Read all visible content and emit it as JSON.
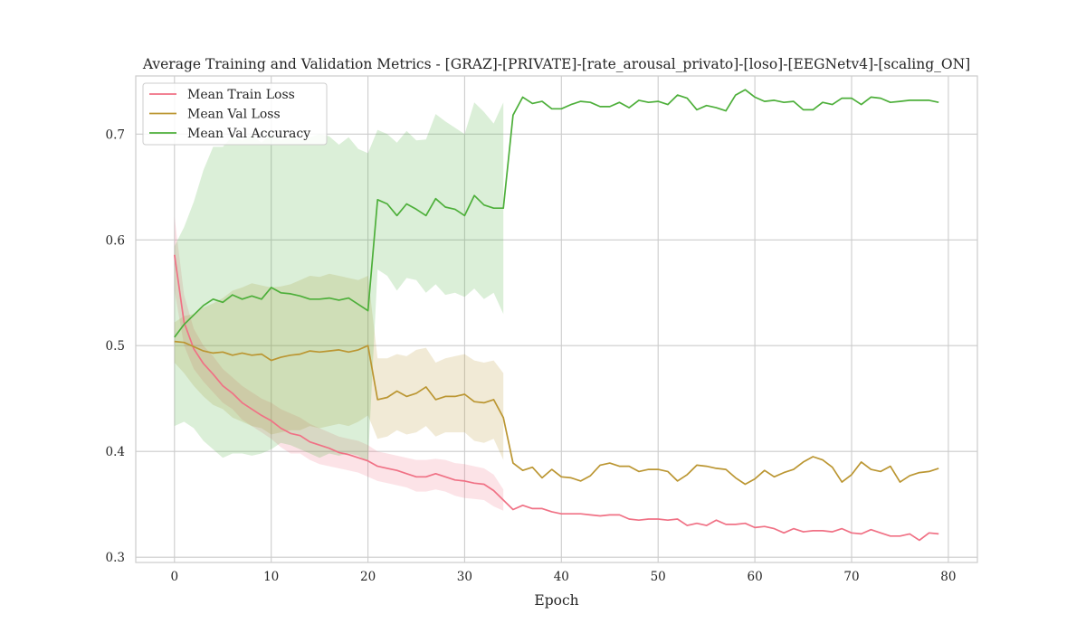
{
  "chart_data": {
    "type": "line",
    "title": "Average Training and Validation Metrics - [GRAZ]-[PRIVATE]-[rate_arousal_privato]-[loso]-[EEGNetv4]-[scaling_ON]",
    "xlabel": "Epoch",
    "ylabel": "",
    "xlim": [
      -4,
      83
    ],
    "ylim": [
      0.295,
      0.755
    ],
    "xticks": [
      0,
      10,
      20,
      30,
      40,
      50,
      60,
      70,
      80
    ],
    "yticks": [
      0.3,
      0.4,
      0.5,
      0.6,
      0.7
    ],
    "grid": true,
    "legend_position": "upper-left",
    "series": [
      {
        "name": "Mean Train Loss",
        "color": "#f07185",
        "x": [
          0,
          1,
          2,
          3,
          4,
          5,
          6,
          7,
          8,
          9,
          10,
          11,
          12,
          13,
          14,
          15,
          16,
          17,
          18,
          19,
          20,
          21,
          22,
          23,
          24,
          25,
          26,
          27,
          28,
          29,
          30,
          31,
          32,
          33,
          34,
          35,
          36,
          37,
          38,
          39,
          40,
          41,
          42,
          43,
          44,
          45,
          46,
          47,
          48,
          49,
          50,
          51,
          52,
          53,
          54,
          55,
          56,
          57,
          58,
          59,
          60,
          61,
          62,
          63,
          64,
          65,
          66,
          67,
          68,
          69,
          70,
          71,
          72,
          73,
          74,
          75,
          76,
          77,
          78,
          79
        ],
        "values": [
          0.586,
          0.522,
          0.497,
          0.483,
          0.473,
          0.462,
          0.455,
          0.446,
          0.44,
          0.434,
          0.429,
          0.422,
          0.417,
          0.415,
          0.409,
          0.406,
          0.403,
          0.399,
          0.397,
          0.394,
          0.391,
          0.386,
          0.384,
          0.382,
          0.379,
          0.376,
          0.376,
          0.379,
          0.376,
          0.373,
          0.372,
          0.37,
          0.369,
          0.363,
          0.354,
          0.345,
          0.349,
          0.346,
          0.346,
          0.343,
          0.341,
          0.341,
          0.341,
          0.34,
          0.339,
          0.34,
          0.34,
          0.336,
          0.335,
          0.336,
          0.336,
          0.335,
          0.336,
          0.33,
          0.332,
          0.33,
          0.335,
          0.331,
          0.331,
          0.332,
          0.328,
          0.329,
          0.327,
          0.323,
          0.327,
          0.324,
          0.325,
          0.325,
          0.324,
          0.327,
          0.323,
          0.322,
          0.326,
          0.323,
          0.32,
          0.32,
          0.322,
          0.316,
          0.323,
          0.322
        ],
        "band_upper": [
          0.622,
          0.548,
          0.516,
          0.5,
          0.49,
          0.478,
          0.47,
          0.462,
          0.456,
          0.45,
          0.446,
          0.44,
          0.436,
          0.432,
          0.426,
          0.422,
          0.418,
          0.414,
          0.412,
          0.41,
          0.406,
          0.4,
          0.398,
          0.396,
          0.394,
          0.392,
          0.392,
          0.393,
          0.392,
          0.389,
          0.388,
          0.386,
          0.384,
          0.378,
          0.364
        ],
        "band_lower": [
          0.552,
          0.5,
          0.478,
          0.466,
          0.456,
          0.446,
          0.44,
          0.43,
          0.424,
          0.418,
          0.412,
          0.404,
          0.398,
          0.398,
          0.392,
          0.388,
          0.386,
          0.384,
          0.382,
          0.38,
          0.376,
          0.372,
          0.37,
          0.368,
          0.366,
          0.362,
          0.362,
          0.364,
          0.362,
          0.358,
          0.356,
          0.355,
          0.354,
          0.348,
          0.344
        ]
      },
      {
        "name": "Mean Val Loss",
        "color": "#bb9632",
        "x": [
          0,
          1,
          2,
          3,
          4,
          5,
          6,
          7,
          8,
          9,
          10,
          11,
          12,
          13,
          14,
          15,
          16,
          17,
          18,
          19,
          20,
          21,
          22,
          23,
          24,
          25,
          26,
          27,
          28,
          29,
          30,
          31,
          32,
          33,
          34,
          35,
          36,
          37,
          38,
          39,
          40,
          41,
          42,
          43,
          44,
          45,
          46,
          47,
          48,
          49,
          50,
          51,
          52,
          53,
          54,
          55,
          56,
          57,
          58,
          59,
          60,
          61,
          62,
          63,
          64,
          65,
          66,
          67,
          68,
          69,
          70,
          71,
          72,
          73,
          74,
          75,
          76,
          77,
          78,
          79
        ],
        "values": [
          0.504,
          0.503,
          0.499,
          0.495,
          0.493,
          0.494,
          0.491,
          0.493,
          0.491,
          0.492,
          0.486,
          0.489,
          0.491,
          0.492,
          0.495,
          0.494,
          0.495,
          0.496,
          0.494,
          0.496,
          0.5,
          0.449,
          0.451,
          0.457,
          0.452,
          0.455,
          0.461,
          0.449,
          0.452,
          0.452,
          0.454,
          0.447,
          0.446,
          0.449,
          0.432,
          0.389,
          0.382,
          0.385,
          0.375,
          0.383,
          0.376,
          0.375,
          0.372,
          0.377,
          0.387,
          0.389,
          0.386,
          0.386,
          0.381,
          0.383,
          0.383,
          0.381,
          0.372,
          0.378,
          0.387,
          0.386,
          0.384,
          0.383,
          0.375,
          0.369,
          0.374,
          0.382,
          0.376,
          0.38,
          0.383,
          0.39,
          0.395,
          0.392,
          0.385,
          0.371,
          0.378,
          0.39,
          0.383,
          0.381,
          0.386,
          0.371,
          0.377,
          0.38,
          0.381,
          0.384
        ],
        "band_upper": [
          0.522,
          0.528,
          0.53,
          0.536,
          0.54,
          0.545,
          0.552,
          0.555,
          0.559,
          0.557,
          0.555,
          0.556,
          0.558,
          0.562,
          0.566,
          0.565,
          0.568,
          0.566,
          0.564,
          0.562,
          0.566,
          0.488,
          0.488,
          0.492,
          0.49,
          0.496,
          0.498,
          0.484,
          0.488,
          0.49,
          0.492,
          0.486,
          0.484,
          0.486,
          0.474
        ],
        "band_lower": [
          0.484,
          0.474,
          0.462,
          0.452,
          0.444,
          0.44,
          0.432,
          0.428,
          0.424,
          0.422,
          0.416,
          0.418,
          0.42,
          0.42,
          0.424,
          0.422,
          0.424,
          0.426,
          0.424,
          0.428,
          0.434,
          0.412,
          0.414,
          0.42,
          0.416,
          0.418,
          0.424,
          0.414,
          0.418,
          0.418,
          0.418,
          0.41,
          0.408,
          0.412,
          0.392
        ]
      },
      {
        "name": "Mean Val Accuracy",
        "color": "#4daf3a",
        "x": [
          0,
          1,
          2,
          3,
          4,
          5,
          6,
          7,
          8,
          9,
          10,
          11,
          12,
          13,
          14,
          15,
          16,
          17,
          18,
          19,
          20,
          21,
          22,
          23,
          24,
          25,
          26,
          27,
          28,
          29,
          30,
          31,
          32,
          33,
          34,
          35,
          36,
          37,
          38,
          39,
          40,
          41,
          42,
          43,
          44,
          45,
          46,
          47,
          48,
          49,
          50,
          51,
          52,
          53,
          54,
          55,
          56,
          57,
          58,
          59,
          60,
          61,
          62,
          63,
          64,
          65,
          66,
          67,
          68,
          69,
          70,
          71,
          72,
          73,
          74,
          75,
          76,
          77,
          78,
          79
        ],
        "values": [
          0.508,
          0.52,
          0.529,
          0.538,
          0.544,
          0.541,
          0.548,
          0.544,
          0.547,
          0.544,
          0.555,
          0.55,
          0.549,
          0.547,
          0.544,
          0.544,
          0.545,
          0.543,
          0.545,
          0.539,
          0.533,
          0.638,
          0.634,
          0.623,
          0.634,
          0.629,
          0.623,
          0.639,
          0.631,
          0.629,
          0.623,
          0.642,
          0.633,
          0.63,
          0.63,
          0.718,
          0.735,
          0.729,
          0.731,
          0.724,
          0.724,
          0.728,
          0.731,
          0.73,
          0.726,
          0.726,
          0.73,
          0.725,
          0.732,
          0.73,
          0.731,
          0.728,
          0.737,
          0.734,
          0.723,
          0.727,
          0.725,
          0.722,
          0.737,
          0.742,
          0.735,
          0.731,
          0.732,
          0.73,
          0.731,
          0.723,
          0.723,
          0.73,
          0.728,
          0.734,
          0.734,
          0.728,
          0.735,
          0.734,
          0.73,
          0.731,
          0.732,
          0.732,
          0.732,
          0.73
        ],
        "band_upper": [
          0.594,
          0.612,
          0.636,
          0.666,
          0.688,
          0.688,
          0.698,
          0.694,
          0.699,
          0.692,
          0.7,
          0.694,
          0.698,
          0.694,
          0.697,
          0.7,
          0.698,
          0.69,
          0.697,
          0.686,
          0.682,
          0.704,
          0.7,
          0.692,
          0.703,
          0.694,
          0.695,
          0.719,
          0.712,
          0.706,
          0.7,
          0.73,
          0.721,
          0.71,
          0.73
        ],
        "band_lower": [
          0.424,
          0.428,
          0.422,
          0.41,
          0.402,
          0.394,
          0.398,
          0.398,
          0.396,
          0.398,
          0.402,
          0.408,
          0.406,
          0.402,
          0.398,
          0.394,
          0.398,
          0.396,
          0.398,
          0.396,
          0.39,
          0.572,
          0.566,
          0.552,
          0.564,
          0.562,
          0.55,
          0.558,
          0.548,
          0.55,
          0.546,
          0.554,
          0.544,
          0.55,
          0.53
        ]
      }
    ]
  }
}
